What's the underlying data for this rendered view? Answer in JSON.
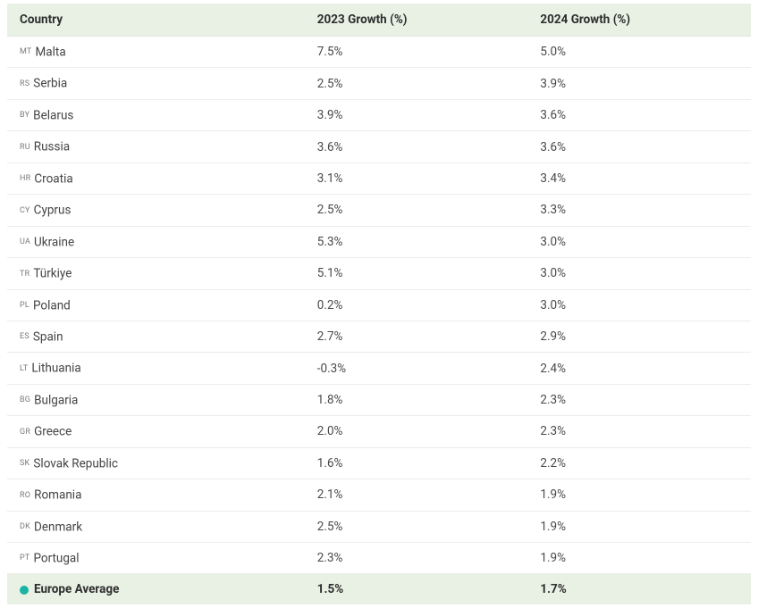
{
  "table": {
    "columns": [
      "Country",
      "2023 Growth (%)",
      "2024 Growth (%)"
    ],
    "rows": [
      {
        "code": "MT",
        "name": "Malta",
        "g2023": "7.5%",
        "g2024": "5.0%"
      },
      {
        "code": "RS",
        "name": "Serbia",
        "g2023": "2.5%",
        "g2024": "3.9%"
      },
      {
        "code": "BY",
        "name": "Belarus",
        "g2023": "3.9%",
        "g2024": "3.6%"
      },
      {
        "code": "RU",
        "name": "Russia",
        "g2023": "3.6%",
        "g2024": "3.6%"
      },
      {
        "code": "HR",
        "name": "Croatia",
        "g2023": "3.1%",
        "g2024": "3.4%"
      },
      {
        "code": "CY",
        "name": "Cyprus",
        "g2023": "2.5%",
        "g2024": "3.3%"
      },
      {
        "code": "UA",
        "name": "Ukraine",
        "g2023": "5.3%",
        "g2024": "3.0%"
      },
      {
        "code": "TR",
        "name": "Türkiye",
        "g2023": "5.1%",
        "g2024": "3.0%"
      },
      {
        "code": "PL",
        "name": "Poland",
        "g2023": "0.2%",
        "g2024": "3.0%"
      },
      {
        "code": "ES",
        "name": "Spain",
        "g2023": "2.7%",
        "g2024": "2.9%"
      },
      {
        "code": "LT",
        "name": "Lithuania",
        "g2023": "-0.3%",
        "g2024": "2.4%"
      },
      {
        "code": "BG",
        "name": "Bulgaria",
        "g2023": "1.8%",
        "g2024": "2.3%"
      },
      {
        "code": "GR",
        "name": "Greece",
        "g2023": "2.0%",
        "g2024": "2.3%"
      },
      {
        "code": "SK",
        "name": "Slovak Republic",
        "g2023": "1.6%",
        "g2024": "2.2%"
      },
      {
        "code": "RO",
        "name": "Romania",
        "g2023": "2.1%",
        "g2024": "1.9%"
      },
      {
        "code": "DK",
        "name": "Denmark",
        "g2023": "2.5%",
        "g2024": "1.9%"
      },
      {
        "code": "PT",
        "name": "Portugal",
        "g2023": "2.3%",
        "g2024": "1.9%"
      }
    ],
    "average": {
      "label": "Europe Average",
      "g2023": "1.5%",
      "g2024": "1.7%",
      "dot_color": "#1ab3a6"
    },
    "colors": {
      "header_bg": "#e9f1e4",
      "avg_row_bg": "#e9f1e4",
      "row_border": "#ececec",
      "text": "#4a4a4a",
      "header_text": "#2e2e2e",
      "code_text": "#7a7a7a",
      "background": "#ffffff"
    },
    "font_sizes": {
      "body": 13.5,
      "code": 9
    },
    "column_widths_pct": [
      40,
      30,
      30
    ]
  }
}
